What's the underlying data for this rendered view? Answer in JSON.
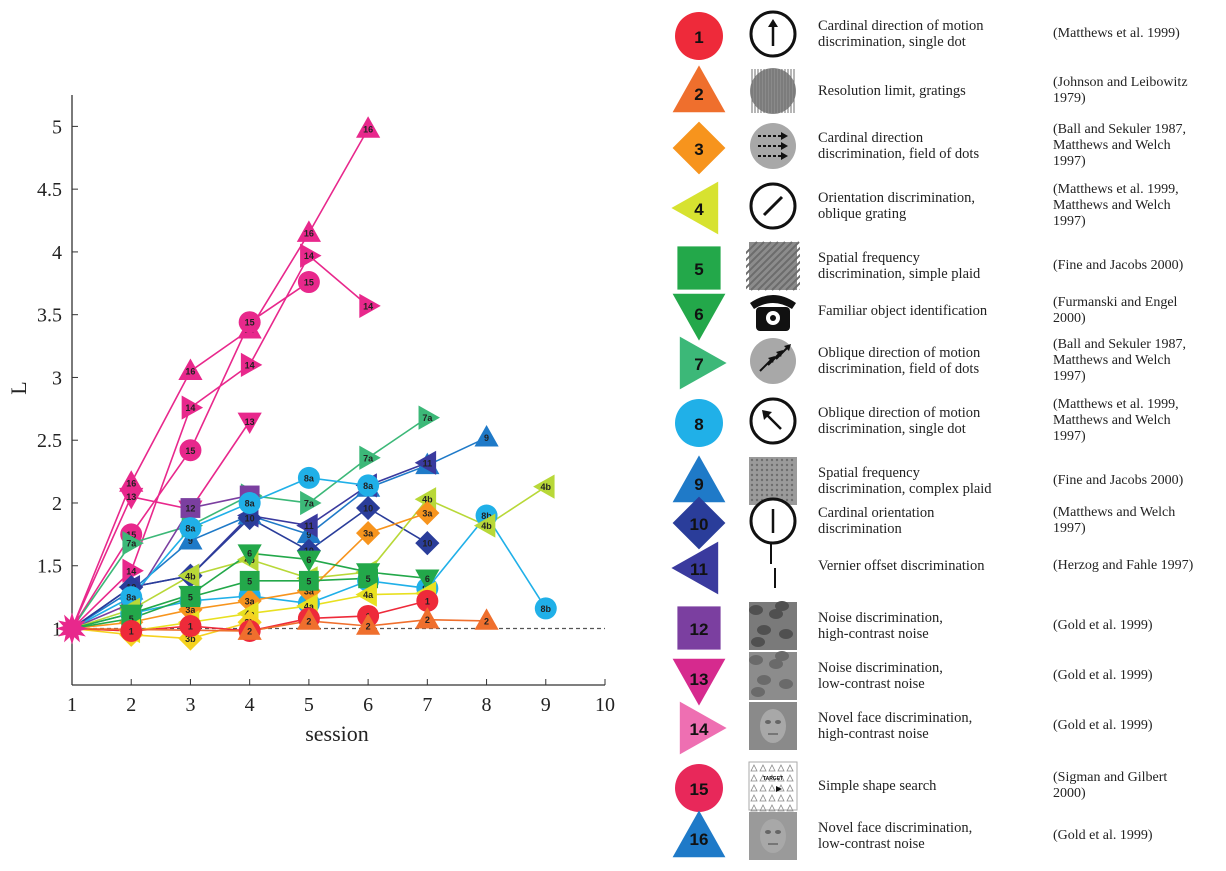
{
  "chart_data": {
    "type": "line",
    "xlabel": "session",
    "ylabel": "L",
    "xlim": [
      1,
      10
    ],
    "ylim": [
      0.55,
      5.25
    ],
    "xticks": [
      1,
      2,
      3,
      4,
      5,
      6,
      7,
      8,
      9,
      10
    ],
    "yticks": [
      1,
      1.5,
      2,
      2.5,
      3,
      3.5,
      4,
      4.5,
      5
    ],
    "ytick_labels": [
      "1",
      "1.5",
      "2",
      "2.5",
      "3",
      "3.5",
      "4",
      "4.5",
      "5"
    ],
    "baseline": 1,
    "series": [
      {
        "label": "16",
        "shape": "triangle-up",
        "color": "#e8288c",
        "x": [
          1,
          2,
          3,
          4,
          5,
          6
        ],
        "y": [
          1,
          2.16,
          3.05,
          3.38,
          4.15,
          4.98
        ]
      },
      {
        "label": "14",
        "shape": "triangle-right",
        "color": "#e8288c",
        "x": [
          1,
          2,
          3,
          4,
          5,
          6
        ],
        "y": [
          1,
          1.46,
          2.76,
          3.1,
          3.97,
          3.57
        ]
      },
      {
        "label": "15",
        "shape": "circle",
        "color": "#e8288c",
        "x": [
          1,
          2,
          3,
          4,
          5
        ],
        "y": [
          1,
          1.75,
          2.42,
          3.44,
          3.76
        ]
      },
      {
        "label": "13",
        "shape": "triangle-down",
        "color": "#e8288c",
        "x": [
          1,
          2,
          3,
          4
        ],
        "y": [
          1,
          2.05,
          1.95,
          2.65
        ]
      },
      {
        "label": "7a",
        "shape": "triangle-right",
        "color": "#3cb878",
        "x": [
          1,
          2,
          3,
          4,
          5,
          6,
          7
        ],
        "y": [
          1,
          1.68,
          1.82,
          2.06,
          2.0,
          2.36,
          2.68
        ]
      },
      {
        "label": "9",
        "shape": "triangle-up",
        "color": "#1f7ac8",
        "x": [
          1,
          2,
          3,
          4,
          5,
          6,
          7,
          8
        ],
        "y": [
          1,
          1.3,
          1.7,
          1.9,
          1.75,
          2.12,
          2.3,
          2.52
        ]
      },
      {
        "label": "11",
        "shape": "triangle-left",
        "color": "#3a3a9e",
        "x": [
          1,
          2,
          3,
          4,
          5,
          6,
          7
        ],
        "y": [
          1,
          1.33,
          1.42,
          1.9,
          1.82,
          2.14,
          2.32
        ]
      },
      {
        "label": "10",
        "shape": "diamond",
        "color": "#2a3d9a",
        "x": [
          1,
          2,
          3,
          4,
          5,
          6,
          7
        ],
        "y": [
          1,
          1.33,
          1.42,
          1.88,
          1.62,
          1.96,
          1.68
        ]
      },
      {
        "label": "12",
        "shape": "square",
        "color": "#7b3fa0",
        "x": [
          1,
          2,
          3,
          4
        ],
        "y": [
          1,
          1.2,
          1.96,
          2.06
        ]
      },
      {
        "label": "8a",
        "shape": "circle",
        "color": "#20b0e8",
        "x": [
          1,
          2,
          3,
          4,
          5,
          6
        ],
        "y": [
          1,
          1.25,
          1.8,
          2.0,
          2.2,
          2.14
        ]
      },
      {
        "label": "8b",
        "shape": "circle",
        "color": "#20b0e8",
        "x": [
          1,
          2,
          3,
          4,
          5,
          6,
          7,
          8,
          9
        ],
        "y": [
          1,
          1.12,
          1.22,
          1.26,
          1.2,
          1.38,
          1.32,
          1.9,
          1.16
        ]
      },
      {
        "label": "4b",
        "shape": "triangle-left",
        "color": "#b8d838",
        "x": [
          1,
          2,
          3,
          4,
          5,
          6,
          7,
          8,
          9
        ],
        "y": [
          1,
          1.15,
          1.42,
          1.55,
          1.4,
          1.45,
          2.03,
          1.82,
          2.13
        ]
      },
      {
        "label": "3a",
        "shape": "diamond",
        "color": "#f7941d",
        "x": [
          1,
          2,
          3,
          4,
          5,
          6,
          7
        ],
        "y": [
          1,
          1.05,
          1.15,
          1.22,
          1.3,
          1.76,
          1.92
        ]
      },
      {
        "label": "6",
        "shape": "triangle-down",
        "color": "#23a84a",
        "x": [
          1,
          2,
          3,
          4,
          5,
          6,
          7
        ],
        "y": [
          1,
          1.12,
          1.27,
          1.6,
          1.55,
          1.45,
          1.4
        ]
      },
      {
        "label": "5",
        "shape": "square",
        "color": "#23a84a",
        "x": [
          1,
          2,
          3,
          4,
          5,
          6
        ],
        "y": [
          1,
          1.08,
          1.25,
          1.38,
          1.38,
          1.4
        ]
      },
      {
        "label": "4a",
        "shape": "triangle-left",
        "color": "#e8e020",
        "x": [
          1,
          2,
          3,
          4,
          5,
          6,
          7
        ],
        "y": [
          1,
          0.98,
          1.05,
          1.12,
          1.18,
          1.27,
          1.28
        ]
      },
      {
        "label": "3b",
        "shape": "diamond",
        "color": "#f5d21f",
        "x": [
          1,
          2,
          3,
          4
        ],
        "y": [
          1,
          0.95,
          0.92,
          1.05
        ]
      },
      {
        "label": "1",
        "shape": "circle",
        "color": "#ee2a3a",
        "x": [
          1,
          2,
          3,
          4,
          5,
          6,
          7
        ],
        "y": [
          1,
          0.98,
          1.02,
          0.98,
          1.08,
          1.1,
          1.22
        ]
      },
      {
        "label": "2",
        "shape": "triangle-up",
        "color": "#ef6f2d",
        "x": [
          1,
          4,
          5,
          6,
          7,
          8
        ],
        "y": [
          1,
          0.98,
          1.06,
          1.02,
          1.07,
          1.06
        ]
      }
    ]
  },
  "legend": [
    {
      "num": "1",
      "shape": "circle",
      "color": "#ee2a3a",
      "stimulus": "arrow-up-icon",
      "desc": [
        "Cardinal direction of motion",
        "discrimination, single dot"
      ],
      "ref": [
        "(Matthews et al. 1999)"
      ]
    },
    {
      "num": "2",
      "shape": "triangle-up",
      "color": "#ef6f2d",
      "stimulus": "grating-icon",
      "desc": [
        "Resolution limit, gratings"
      ],
      "ref": [
        "(Johnson and Leibowitz",
        "1979)"
      ]
    },
    {
      "num": "3",
      "shape": "diamond",
      "color": "#f7941d",
      "stimulus": "dot-field-right-icon",
      "desc": [
        "Cardinal direction",
        "discrimination, field of dots"
      ],
      "ref": [
        "(Ball and Sekuler 1987,",
        "Matthews and Welch",
        "1997)"
      ]
    },
    {
      "num": "4",
      "shape": "triangle-left",
      "color": "#d7e230",
      "stimulus": "oblique-line-icon",
      "desc": [
        "Orientation discrimination,",
        "oblique grating"
      ],
      "ref": [
        "(Matthews et al. 1999,",
        "Matthews and Welch",
        "1997)"
      ]
    },
    {
      "num": "5",
      "shape": "square",
      "color": "#23a84a",
      "stimulus": "plaid-simple-icon",
      "desc": [
        "Spatial frequency",
        "discrimination, simple plaid"
      ],
      "ref": [
        "(Fine and Jacobs 2000)"
      ]
    },
    {
      "num": "6",
      "shape": "triangle-down",
      "color": "#23a84a",
      "stimulus": "telephone-icon",
      "desc": [
        "Familiar object identification"
      ],
      "ref": [
        "(Furmanski and Engel",
        "2000)"
      ]
    },
    {
      "num": "7",
      "shape": "triangle-right",
      "color": "#3cb878",
      "stimulus": "dot-field-oblique-icon",
      "desc": [
        "Oblique direction of motion",
        "discrimination, field of dots"
      ],
      "ref": [
        "(Ball and Sekuler 1987,",
        "Matthews and Welch",
        "1997)"
      ]
    },
    {
      "num": "8",
      "shape": "circle",
      "color": "#20b0e8",
      "stimulus": "oblique-arrow-icon",
      "desc": [
        "Oblique direction of motion",
        "discrimination, single dot"
      ],
      "ref": [
        "(Matthews et al. 1999,",
        "Matthews and Welch",
        "1997)"
      ]
    },
    {
      "num": "9",
      "shape": "triangle-up",
      "color": "#1f7ac8",
      "stimulus": "plaid-complex-icon",
      "desc": [
        "Spatial frequency",
        "discrimination, complex plaid"
      ],
      "ref": [
        "(Fine and Jacobs 2000)"
      ]
    },
    {
      "num": "10",
      "shape": "diamond",
      "color": "#2a3d9a",
      "stimulus": "vertical-line-icon",
      "desc": [
        "Cardinal orientation",
        "discrimination"
      ],
      "ref": [
        "(Matthews and Welch",
        "1997)"
      ]
    },
    {
      "num": "11",
      "shape": "triangle-left",
      "color": "#3a3a9e",
      "stimulus": "vernier-icon",
      "desc": [
        "Vernier offset discrimination"
      ],
      "ref": [
        "(Herzog and Fahle 1997)"
      ]
    },
    {
      "num": "12",
      "shape": "square",
      "color": "#7b3fa0",
      "stimulus": "noise-high-icon",
      "desc": [
        "Noise discrimination,",
        "high-contrast noise"
      ],
      "ref": [
        "(Gold et al. 1999)"
      ]
    },
    {
      "num": "13",
      "shape": "triangle-down",
      "color": "#d62a8e",
      "stimulus": "noise-low-icon",
      "desc": [
        "Noise discrimination,",
        "low-contrast noise"
      ],
      "ref": [
        "(Gold et al. 1999)"
      ]
    },
    {
      "num": "14",
      "shape": "triangle-right",
      "color": "#ee6fb2",
      "stimulus": "face-high-icon",
      "desc": [
        "Novel face discrimination,",
        "high-contrast noise"
      ],
      "ref": [
        "(Gold et al. 1999)"
      ]
    },
    {
      "num": "15",
      "shape": "circle",
      "color": "#e8285a",
      "stimulus": "shape-search-icon",
      "desc": [
        "Simple shape search"
      ],
      "ref": [
        "(Sigman and Gilbert",
        "2000)"
      ]
    },
    {
      "num": "16",
      "shape": "triangle-up",
      "color": "#1f7ac8",
      "stimulus": "face-low-icon",
      "desc": [
        "Novel face discrimination,",
        "low-contrast noise"
      ],
      "ref": [
        "(Gold et al. 1999)"
      ]
    }
  ],
  "search_stimulus_label": "TARGET"
}
